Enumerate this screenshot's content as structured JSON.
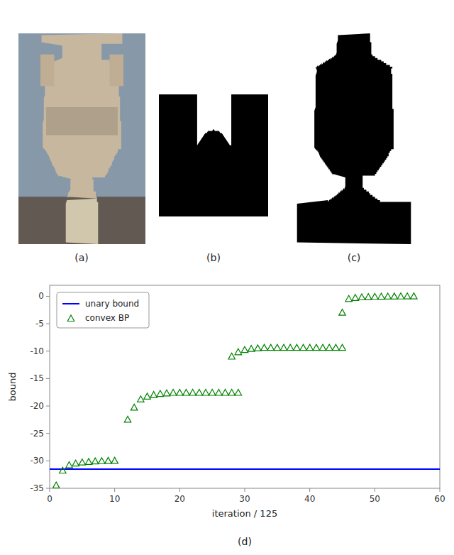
{
  "chart_data": {
    "type": "scatter",
    "xlabel": "iteration / 125",
    "ylabel": "bound",
    "xlim": [
      0,
      60
    ],
    "ylim": [
      -35,
      2
    ],
    "xticks": [
      0,
      10,
      20,
      30,
      40,
      50,
      60
    ],
    "yticks": [
      0,
      -5,
      -10,
      -15,
      -20,
      -25,
      -30,
      -35
    ],
    "grid": false,
    "legend": "upper left",
    "annotations": [
      "(a)",
      "(b)",
      "(c)",
      "(d)"
    ],
    "series": [
      {
        "name": "unary bound",
        "type": "hline",
        "color": "#0000ff",
        "line_style": "solid",
        "values": [
          -31.5
        ]
      },
      {
        "name": "convex BP",
        "type": "scatter",
        "color": "#008000",
        "marker": "triangle",
        "x": [
          1,
          2,
          3,
          4,
          5,
          6,
          7,
          8,
          9,
          10,
          12,
          13,
          14,
          15,
          16,
          17,
          18,
          19,
          20,
          21,
          22,
          23,
          24,
          25,
          26,
          27,
          28,
          29,
          28,
          29,
          30,
          31,
          32,
          33,
          34,
          35,
          36,
          37,
          38,
          39,
          40,
          41,
          42,
          43,
          44,
          45,
          45,
          46,
          47,
          48,
          49,
          50,
          51,
          52,
          53,
          54,
          55,
          56
        ],
        "values": [
          -34.5,
          -31.8,
          -30.8,
          -30.5,
          -30.3,
          -30.2,
          -30.1,
          -30.05,
          -30.0,
          -30.0,
          -22.5,
          -20.3,
          -18.8,
          -18.3,
          -18.0,
          -17.8,
          -17.7,
          -17.6,
          -17.6,
          -17.6,
          -17.6,
          -17.6,
          -17.6,
          -17.6,
          -17.6,
          -17.6,
          -17.6,
          -17.6,
          -11.0,
          -10.2,
          -9.8,
          -9.6,
          -9.5,
          -9.4,
          -9.4,
          -9.4,
          -9.4,
          -9.4,
          -9.4,
          -9.4,
          -9.4,
          -9.4,
          -9.4,
          -9.4,
          -9.4,
          -9.4,
          -3.0,
          -0.5,
          -0.3,
          -0.2,
          -0.15,
          -0.1,
          -0.08,
          -0.06,
          -0.05,
          -0.04,
          -0.03,
          -0.02
        ]
      }
    ]
  }
}
